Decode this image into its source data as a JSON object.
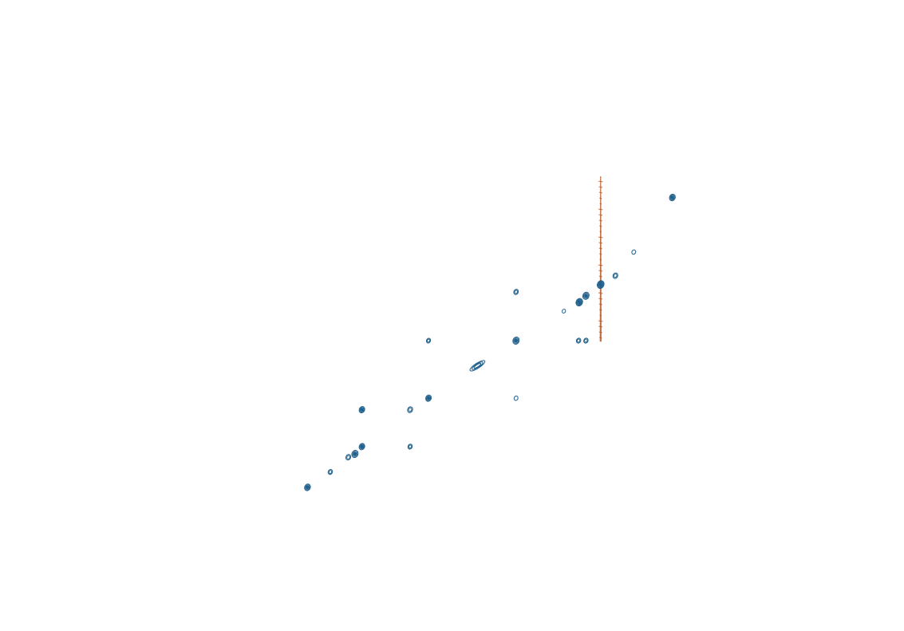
{
  "chart_data": {
    "type": "contour",
    "title": "",
    "xlabel": "",
    "ylabel": "",
    "axes_visible": false,
    "grid": false,
    "legend": "none",
    "xlim": [
      0,
      1
    ],
    "ylim": [
      0,
      1
    ],
    "colors": {
      "positive_contours": "#1f5f8b",
      "negative_contours": "#b5541f",
      "background": "#ffffff"
    },
    "series": [
      {
        "name": "",
        "kind": "positive-contour-peaks",
        "color": "#1f5f8b",
        "peaks": [
          {
            "x": 0.003,
            "y": 0.003,
            "intensity": 0.75,
            "shape": "round"
          },
          {
            "x": 0.065,
            "y": 0.055,
            "intensity": 0.45,
            "shape": "round"
          },
          {
            "x": 0.114,
            "y": 0.105,
            "intensity": 0.55,
            "shape": "round"
          },
          {
            "x": 0.132,
            "y": 0.116,
            "intensity": 0.85,
            "shape": "round"
          },
          {
            "x": 0.151,
            "y": 0.141,
            "intensity": 0.7,
            "shape": "round"
          },
          {
            "x": 0.151,
            "y": 0.266,
            "intensity": 0.7,
            "shape": "round"
          },
          {
            "x": 0.282,
            "y": 0.141,
            "intensity": 0.45,
            "shape": "round"
          },
          {
            "x": 0.282,
            "y": 0.266,
            "intensity": 0.6,
            "shape": "round"
          },
          {
            "x": 0.332,
            "y": 0.305,
            "intensity": 0.7,
            "shape": "round"
          },
          {
            "x": 0.332,
            "y": 0.5,
            "intensity": 0.4,
            "shape": "round"
          },
          {
            "x": 0.465,
            "y": 0.415,
            "intensity": 1.0,
            "shape": "diagonal-streak"
          },
          {
            "x": 0.57,
            "y": 0.305,
            "intensity": 0.35,
            "shape": "round"
          },
          {
            "x": 0.57,
            "y": 0.5,
            "intensity": 0.85,
            "shape": "round"
          },
          {
            "x": 0.57,
            "y": 0.665,
            "intensity": 0.5,
            "shape": "round"
          },
          {
            "x": 0.7,
            "y": 0.6,
            "intensity": 0.25,
            "shape": "round"
          },
          {
            "x": 0.74,
            "y": 0.5,
            "intensity": 0.45,
            "shape": "round"
          },
          {
            "x": 0.76,
            "y": 0.5,
            "intensity": 0.45,
            "shape": "round"
          },
          {
            "x": 0.742,
            "y": 0.63,
            "intensity": 0.9,
            "shape": "round"
          },
          {
            "x": 0.76,
            "y": 0.652,
            "intensity": 0.85,
            "shape": "round"
          },
          {
            "x": 0.8,
            "y": 0.69,
            "intensity": 0.95,
            "shape": "round"
          },
          {
            "x": 0.84,
            "y": 0.72,
            "intensity": 0.55,
            "shape": "round"
          },
          {
            "x": 0.89,
            "y": 0.8,
            "intensity": 0.35,
            "shape": "round"
          },
          {
            "x": 0.995,
            "y": 0.985,
            "intensity": 0.75,
            "shape": "round"
          }
        ]
      },
      {
        "name": "",
        "kind": "negative-vertical-artifact",
        "color": "#b5541f",
        "x": 0.8,
        "y_range": [
          0.51,
          1.0
        ]
      }
    ]
  }
}
